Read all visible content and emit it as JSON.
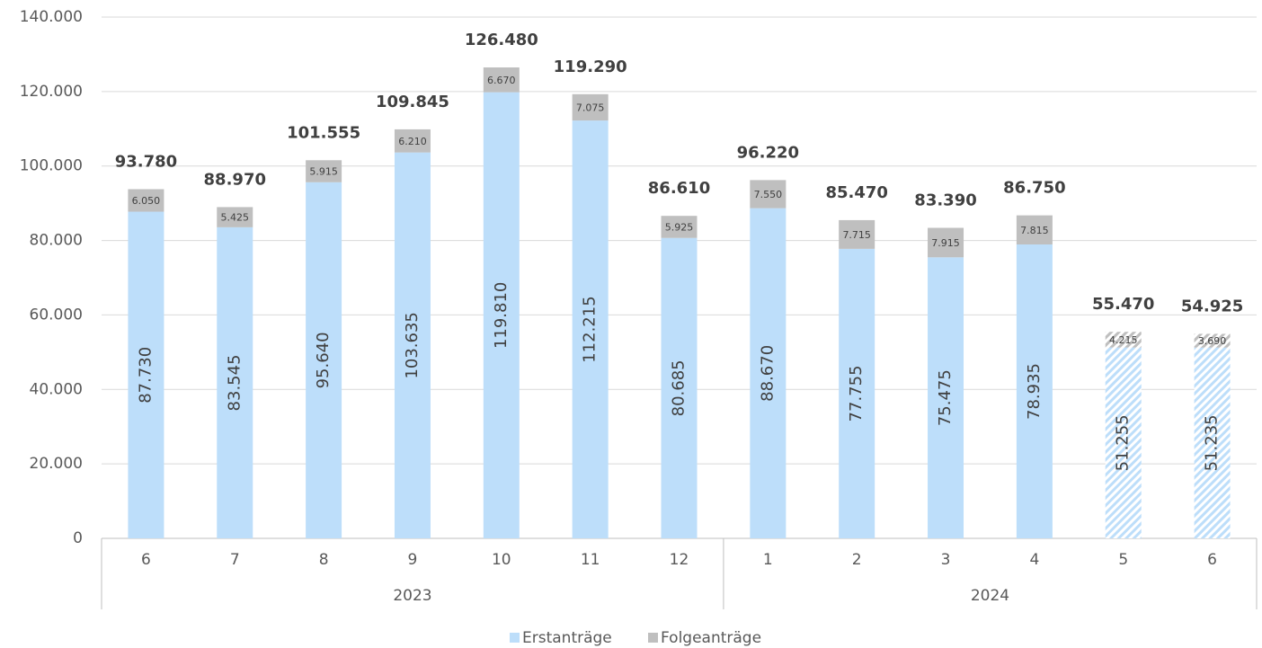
{
  "chart_data": {
    "type": "stacked-bar",
    "categories": [
      "6",
      "7",
      "8",
      "9",
      "10",
      "11",
      "12",
      "1",
      "2",
      "3",
      "4",
      "5",
      "6"
    ],
    "groups": [
      {
        "label": "2023",
        "size": 7
      },
      {
        "label": "2024",
        "size": 6
      }
    ],
    "projected": [
      false,
      false,
      false,
      false,
      false,
      false,
      false,
      false,
      false,
      false,
      false,
      true,
      true
    ],
    "series": [
      {
        "name": "Erstanträge",
        "color": "#bddefa",
        "values": [
          87730,
          83545,
          95640,
          103635,
          119810,
          112215,
          80685,
          88670,
          77755,
          75475,
          78935,
          51255,
          51235
        ],
        "value_labels": [
          "87.730",
          "83.545",
          "95.640",
          "103.635",
          "119.810",
          "112.215",
          "80.685",
          "88.670",
          "77.755",
          "75.475",
          "78.935",
          "51.255",
          "51.235"
        ]
      },
      {
        "name": "Folgeanträge",
        "color": "#bfbfbf",
        "values": [
          6050,
          5425,
          5915,
          6210,
          6670,
          7075,
          5925,
          7550,
          7715,
          7915,
          7815,
          4215,
          3690
        ],
        "value_labels": [
          "6.050",
          "5.425",
          "5.915",
          "6.210",
          "6.670",
          "7.075",
          "5.925",
          "7.550",
          "7.715",
          "7.915",
          "7.815",
          "4.215",
          "3.690"
        ]
      }
    ],
    "totals": {
      "values": [
        93780,
        88970,
        101555,
        109845,
        126480,
        119290,
        86610,
        96220,
        85470,
        83390,
        86750,
        55470,
        54925
      ],
      "value_labels": [
        "93.780",
        "88.970",
        "101.555",
        "109.845",
        "126.480",
        "119.290",
        "86.610",
        "96.220",
        "85.470",
        "83.390",
        "86.750",
        "55.470",
        "54.925"
      ]
    },
    "ylim": [
      0,
      140000
    ],
    "yticks": [
      0,
      {
        "value": 20000,
        "label": "20.000"
      },
      {
        "value": 40000,
        "label": "40.000"
      },
      {
        "value": 60000,
        "label": "60.000"
      },
      {
        "value": 80000,
        "label": "80.000"
      },
      {
        "value": 100000,
        "label": "100.000"
      },
      {
        "value": 120000,
        "label": "120.000"
      },
      {
        "value": 140000,
        "label": "140.000"
      }
    ],
    "grid": true,
    "legend": "bottom"
  }
}
